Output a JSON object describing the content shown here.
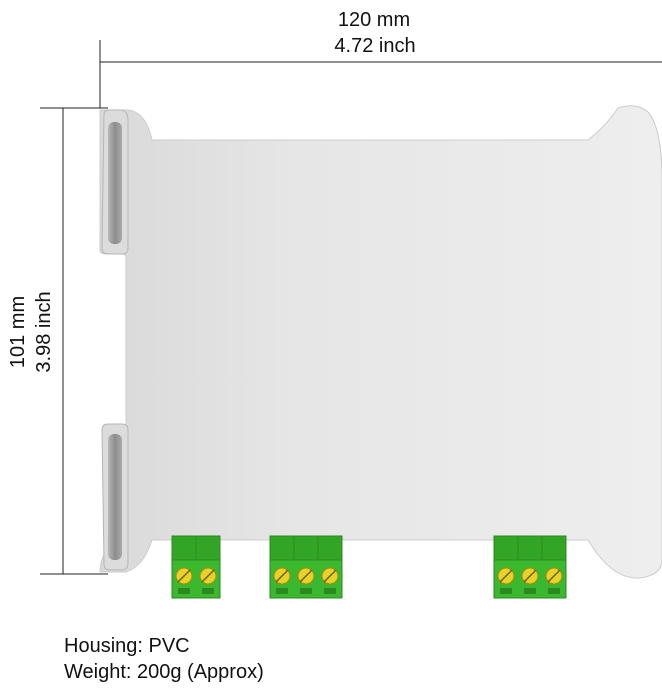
{
  "dimensions": {
    "width_mm": "120 mm",
    "width_inch": "4.72 inch",
    "height_mm": "101 mm",
    "height_inch": "3.98  inch"
  },
  "specs": {
    "housing": "Housing: PVC",
    "weight": "Weight: 200g (Approx)"
  },
  "colors": {
    "housing_fill": "#e6e6e6",
    "housing_stroke": "#c8c8c8",
    "terminal_green": "#3cb82e",
    "terminal_dark_green": "#2a8a20",
    "screw_yellow": "#e8d22a",
    "dimension_line": "#222222"
  },
  "terminal_blocks": [
    {
      "id": "left",
      "screws": 2
    },
    {
      "id": "middle",
      "screws": 3
    },
    {
      "id": "right",
      "screws": 3
    }
  ]
}
